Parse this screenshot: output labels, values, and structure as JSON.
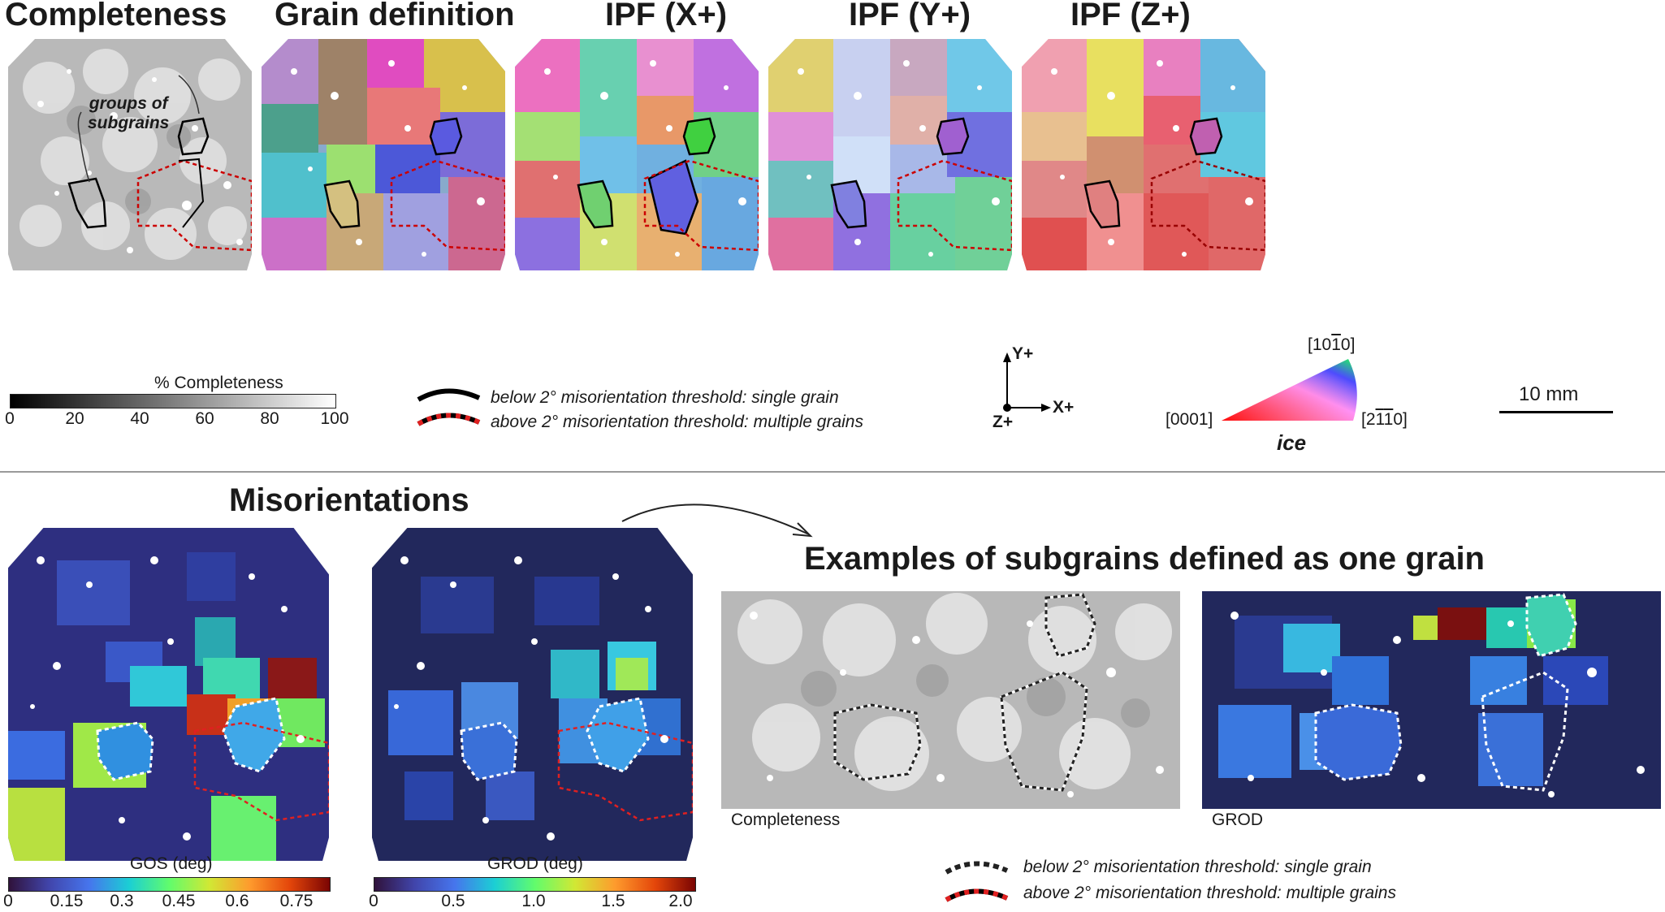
{
  "titles": {
    "completeness": "Completeness",
    "grain_definition": "Grain definition",
    "ipf_x": "IPF (X+)",
    "ipf_y": "IPF (Y+)",
    "ipf_z": "IPF (Z+)",
    "misorientations": "Misorientations",
    "examples": "Examples of subgrains defined as one grain"
  },
  "annotation": {
    "line1": "groups of",
    "line2": "subgrains"
  },
  "completeness_bar": {
    "label": "% Completeness",
    "ticks": [
      "0",
      "20",
      "40",
      "60",
      "80",
      "100"
    ]
  },
  "legend_top": {
    "black": "below 2° misorientation threshold: single grain",
    "red": "above 2° misorientation threshold: multiple grains"
  },
  "axes": {
    "y": "Y+",
    "x": "X+",
    "z": "Z+"
  },
  "ipf_key": {
    "top": "[10̅1̅0]",
    "top_plain": "[1010]",
    "left": "[0001]",
    "right": "[2110]",
    "material": "ice"
  },
  "scale_bar": {
    "label": "10 mm"
  },
  "gos_bar": {
    "label": "GOS (deg)",
    "ticks": [
      "0",
      "0.15",
      "0.3",
      "0.45",
      "0.6",
      "0.75"
    ]
  },
  "grod_bar": {
    "label": "GROD (deg)",
    "ticks": [
      "0",
      "0.5",
      "1.0",
      "1.5",
      "2.0"
    ]
  },
  "example_captions": {
    "left": "Completeness",
    "right": "GROD"
  },
  "legend_bottom": {
    "black": "below 2° misorientation threshold: single grain",
    "red": "above 2° misorientation threshold: multiple grains"
  }
}
